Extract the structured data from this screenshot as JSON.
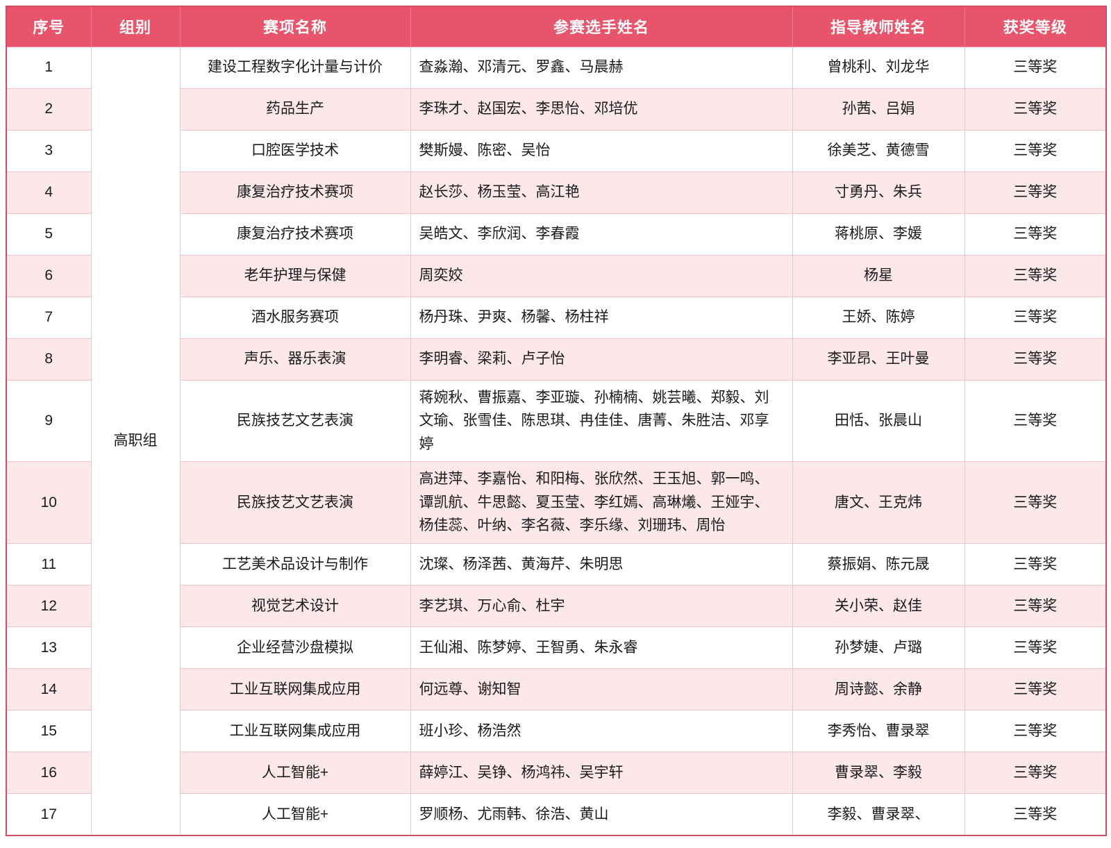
{
  "table": {
    "headers": [
      "序号",
      "组别",
      "赛项名称",
      "参赛选手姓名",
      "指导教师姓名",
      "获奖等级"
    ],
    "group_label": "高职组",
    "rows": [
      {
        "no": "1",
        "event": "建设工程数字化计量与计价",
        "participants": "查淼瀚、邓清元、罗鑫、马晨赫",
        "teachers": "曾桃利、刘龙华",
        "award": "三等奖"
      },
      {
        "no": "2",
        "event": "药品生产",
        "participants": "李珠才、赵国宏、李思怡、邓培优",
        "teachers": "孙茜、吕娟",
        "award": "三等奖"
      },
      {
        "no": "3",
        "event": "口腔医学技术",
        "participants": "樊斯嫚、陈密、吴怡",
        "teachers": "徐美芝、黄德雪",
        "award": "三等奖"
      },
      {
        "no": "4",
        "event": "康复治疗技术赛项",
        "participants": "赵长莎、杨玉莹、高江艳",
        "teachers": "寸勇丹、朱兵",
        "award": "三等奖"
      },
      {
        "no": "5",
        "event": "康复治疗技术赛项",
        "participants": "吴皓文、李欣润、李春霞",
        "teachers": "蒋桃原、李媛",
        "award": "三等奖"
      },
      {
        "no": "6",
        "event": "老年护理与保健",
        "participants": "周奕姣",
        "teachers": "杨星",
        "award": "三等奖"
      },
      {
        "no": "7",
        "event": "酒水服务赛项",
        "participants": "杨丹珠、尹爽、杨馨、杨柱祥",
        "teachers": "王娇、陈婷",
        "award": "三等奖"
      },
      {
        "no": "8",
        "event": "声乐、器乐表演",
        "participants": "李明睿、梁莉、卢子怡",
        "teachers": "李亚昂、王叶曼",
        "award": "三等奖"
      },
      {
        "no": "9",
        "event": "民族技艺文艺表演",
        "participants": "蒋婉秋、曹振嘉、李亚璇、孙楠楠、姚芸曦、郑毅、刘文瑜、张雪佳、陈思琪、冉佳佳、唐菁、朱胜洁、邓享婷",
        "teachers": "田恬、张晨山",
        "award": "三等奖"
      },
      {
        "no": "10",
        "event": "民族技艺文艺表演",
        "participants": "高进萍、李嘉怡、和阳梅、张欣然、王玉旭、郭一鸣、谭凯航、牛思懿、夏玉莹、李红嫣、高琳爔、王娅宇、杨佳蕊、叶纳、李名薇、李乐缘、刘珊玮、周怡",
        "teachers": "唐文、王克炜",
        "award": "三等奖"
      },
      {
        "no": "11",
        "event": "工艺美术品设计与制作",
        "participants": "沈璨、杨泽茜、黄海芹、朱明思",
        "teachers": "蔡振娟、陈元晟",
        "award": "三等奖"
      },
      {
        "no": "12",
        "event": "视觉艺术设计",
        "participants": "李艺琪、万心俞、杜宇",
        "teachers": "关小荣、赵佳",
        "award": "三等奖"
      },
      {
        "no": "13",
        "event": "企业经营沙盘模拟",
        "participants": "王仙湘、陈梦婷、王智勇、朱永睿",
        "teachers": "孙梦婕、卢璐",
        "award": "三等奖"
      },
      {
        "no": "14",
        "event": "工业互联网集成应用",
        "participants": "何远尊、谢知智",
        "teachers": "周诗懿、余静",
        "award": "三等奖"
      },
      {
        "no": "15",
        "event": "工业互联网集成应用",
        "participants": "班小珍、杨浩然",
        "teachers": "李秀怡、曹录翠",
        "award": "三等奖"
      },
      {
        "no": "16",
        "event": "人工智能+",
        "participants": "薛婷江、吴铮、杨鸿祎、吴宇轩",
        "teachers": "曹录翠、李毅",
        "award": "三等奖"
      },
      {
        "no": "17",
        "event": "人工智能+",
        "participants": "罗顺杨、尤雨韩、徐浩、黄山",
        "teachers": "李毅、曹录翠、",
        "award": "三等奖"
      }
    ],
    "colors": {
      "header_bg": "#e8556b",
      "header_text": "#ffffff",
      "row_bg": "#ffffff",
      "row_alt_bg": "#fce8ea",
      "grid_border": "#f5c3ca",
      "outer_border": "#cf4e63",
      "body_text": "#1a1a1a"
    }
  }
}
